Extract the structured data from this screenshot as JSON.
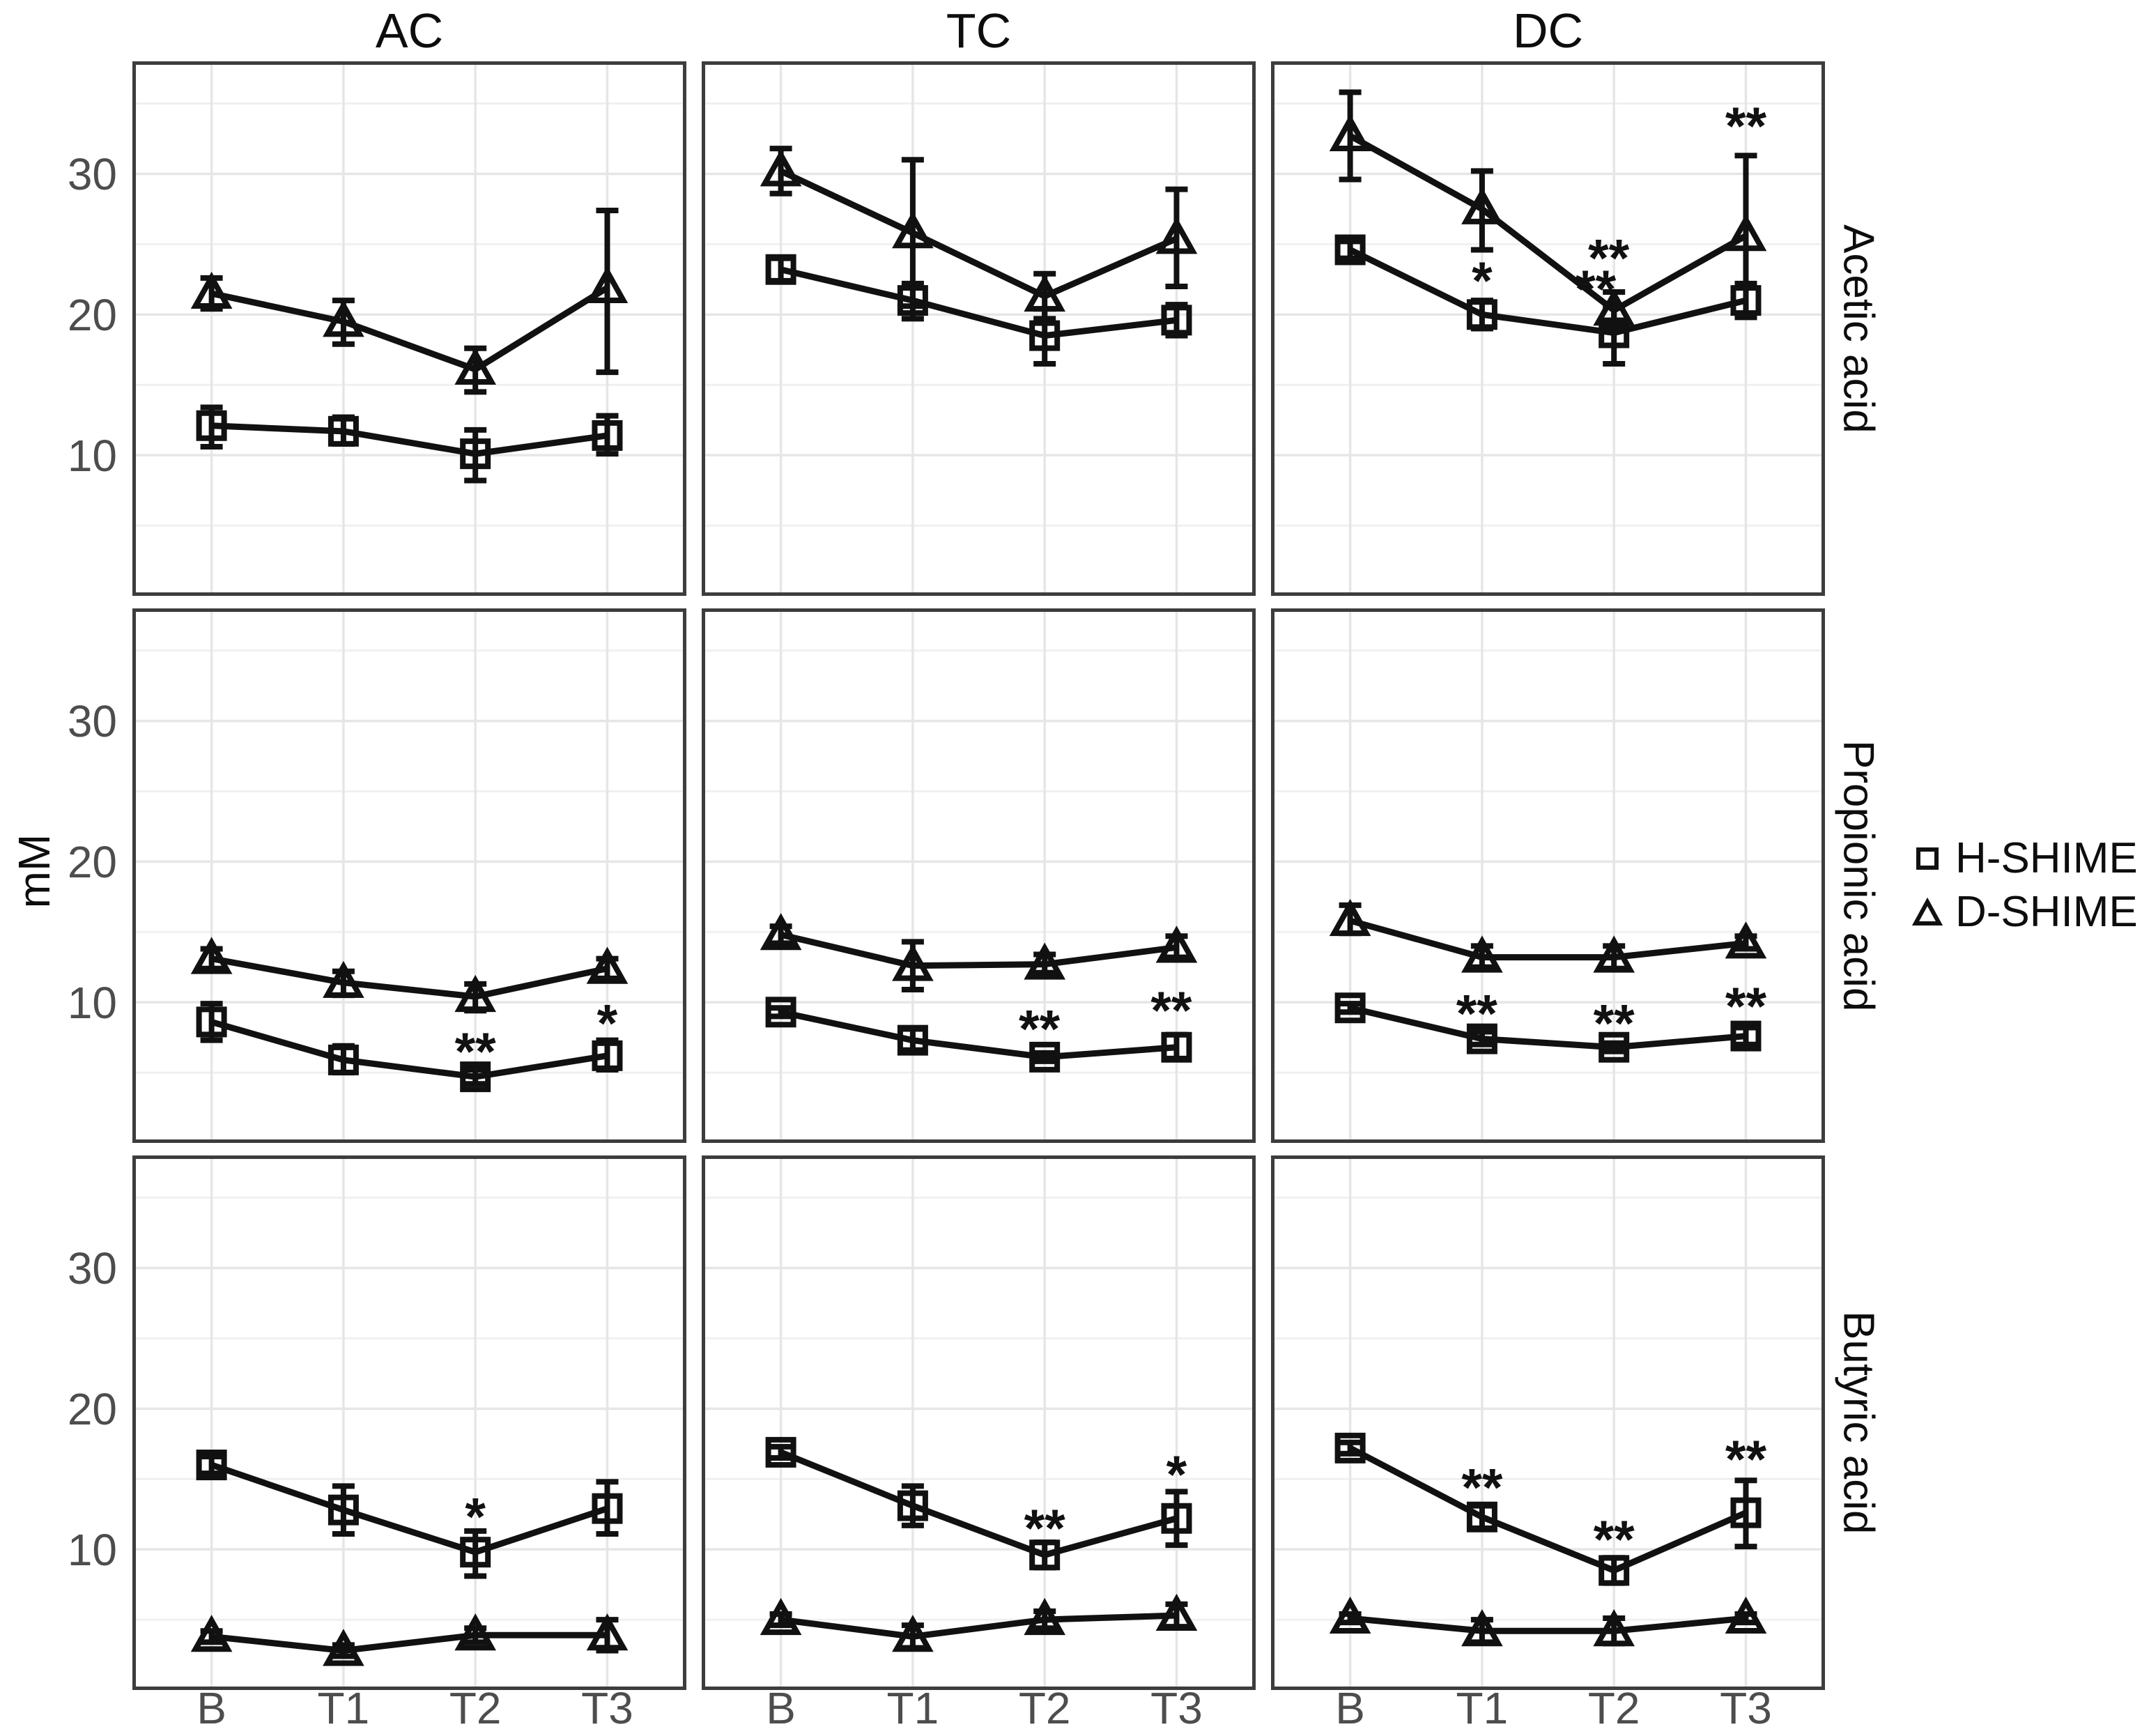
{
  "chart_data": {
    "type": "line",
    "title": "",
    "ylabel": "mM",
    "x_categories": [
      "B",
      "T1",
      "T2",
      "T3"
    ],
    "col_facets": [
      "AC",
      "TC",
      "DC"
    ],
    "row_facets": [
      "Acetic acid",
      "Propionic acid",
      "Butyric acid"
    ],
    "y_ticks": [
      10,
      20,
      30
    ],
    "y_minor_ticks": [
      5,
      15,
      25,
      35
    ],
    "ylim": [
      0,
      38
    ],
    "grid": true,
    "legend_position": "right",
    "legend": [
      {
        "label": "H-SHIME",
        "marker": "square"
      },
      {
        "label": "D-SHIME",
        "marker": "triangle"
      }
    ],
    "colors": {
      "series": "#111111",
      "axis_text": "#4d4d4d",
      "facet_text": "#0d0d0d",
      "grid_major": "#e6e6e6",
      "grid_minor": "#f0f0f0",
      "panel_border": "#3d3d3d",
      "background": "#ffffff"
    },
    "panels": [
      {
        "row": "Acetic acid",
        "col": "AC",
        "series": [
          {
            "name": "H-SHIME",
            "marker": "square",
            "means": [
              12.1,
              11.7,
              10.1,
              11.4
            ],
            "lo": [
              10.6,
              10.8,
              8.2,
              10.1
            ],
            "hi": [
              13.4,
              12.7,
              11.8,
              12.8
            ]
          },
          {
            "name": "D-SHIME",
            "marker": "triangle",
            "means": [
              21.5,
              19.5,
              16.1,
              21.9
            ],
            "lo": [
              20.4,
              17.9,
              14.5,
              15.9
            ],
            "hi": [
              22.6,
              21.0,
              17.6,
              27.4
            ]
          }
        ],
        "annotations": []
      },
      {
        "row": "Acetic acid",
        "col": "TC",
        "series": [
          {
            "name": "H-SHIME",
            "marker": "square",
            "means": [
              23.2,
              21.0,
              18.5,
              19.6
            ],
            "lo": [
              22.4,
              19.7,
              16.5,
              18.5
            ],
            "hi": [
              24.0,
              22.2,
              20.4,
              20.7
            ]
          },
          {
            "name": "D-SHIME",
            "marker": "triangle",
            "means": [
              30.2,
              25.8,
              21.3,
              25.4
            ],
            "lo": [
              28.6,
              20.6,
              19.7,
              22.0
            ],
            "hi": [
              31.8,
              31.0,
              22.9,
              28.9
            ]
          }
        ],
        "annotations": []
      },
      {
        "row": "Acetic acid",
        "col": "DC",
        "series": [
          {
            "name": "H-SHIME",
            "marker": "square",
            "means": [
              24.6,
              20.0,
              18.7,
              21.0
            ],
            "lo": [
              24.0,
              19.0,
              16.5,
              19.8
            ],
            "hi": [
              25.2,
              21.0,
              20.6,
              22.2
            ]
          },
          {
            "name": "D-SHIME",
            "marker": "triangle",
            "means": [
              32.7,
              27.5,
              20.3,
              25.6
            ],
            "lo": [
              29.6,
              24.6,
              19.1,
              20.0
            ],
            "hi": [
              35.8,
              30.2,
              21.6,
              31.3
            ]
          }
        ],
        "annotations": [
          {
            "x": "T1",
            "y": 22.6,
            "dx": 0,
            "text": "*"
          },
          {
            "x": "T2",
            "y": 24.2,
            "dx": -0.04,
            "text": "**"
          },
          {
            "x": "T2",
            "y": 22.0,
            "dx": -0.14,
            "text": "**"
          },
          {
            "x": "T3",
            "y": 33.6,
            "dx": 0,
            "text": "**"
          }
        ]
      },
      {
        "row": "Propionic acid",
        "col": "AC",
        "series": [
          {
            "name": "H-SHIME",
            "marker": "square",
            "means": [
              8.6,
              5.9,
              4.7,
              6.2
            ],
            "lo": [
              7.3,
              5.0,
              4.2,
              5.2
            ],
            "hi": [
              9.9,
              6.9,
              5.2,
              7.3
            ]
          },
          {
            "name": "D-SHIME",
            "marker": "triangle",
            "means": [
              13.1,
              11.4,
              10.4,
              12.4
            ],
            "lo": [
              12.4,
              10.5,
              9.4,
              11.7
            ],
            "hi": [
              13.8,
              12.2,
              11.3,
              13.1
            ]
          }
        ],
        "annotations": [
          {
            "x": "T2",
            "y": 6.7,
            "dx": 0,
            "text": "**"
          },
          {
            "x": "T3",
            "y": 8.7,
            "dx": 0,
            "text": "*"
          }
        ]
      },
      {
        "row": "Propionic acid",
        "col": "TC",
        "series": [
          {
            "name": "H-SHIME",
            "marker": "square",
            "means": [
              9.3,
              7.3,
              6.1,
              6.8
            ],
            "lo": [
              9.0,
              6.6,
              5.8,
              6.0
            ],
            "hi": [
              9.6,
              8.1,
              6.4,
              7.7
            ]
          },
          {
            "name": "D-SHIME",
            "marker": "triangle",
            "means": [
              14.8,
              12.6,
              12.7,
              13.9
            ],
            "lo": [
              14.2,
              10.9,
              12.1,
              13.2
            ],
            "hi": [
              15.4,
              14.3,
              13.4,
              14.7
            ]
          }
        ],
        "annotations": [
          {
            "x": "T2",
            "y": 8.3,
            "dx": -0.04,
            "text": "**"
          },
          {
            "x": "T3",
            "y": 9.6,
            "dx": -0.04,
            "text": "**"
          }
        ]
      },
      {
        "row": "Propionic acid",
        "col": "DC",
        "series": [
          {
            "name": "H-SHIME",
            "marker": "square",
            "means": [
              9.6,
              7.4,
              6.8,
              7.6
            ],
            "lo": [
              9.3,
              7.0,
              6.5,
              7.0
            ],
            "hi": [
              9.9,
              7.9,
              7.1,
              8.2
            ]
          },
          {
            "name": "D-SHIME",
            "marker": "triangle",
            "means": [
              15.8,
              13.2,
              13.2,
              14.2
            ],
            "lo": [
              14.9,
              12.5,
              12.4,
              13.8
            ],
            "hi": [
              16.9,
              14.0,
              14.0,
              14.7
            ]
          }
        ],
        "annotations": [
          {
            "x": "T1",
            "y": 9.4,
            "dx": -0.04,
            "text": "**"
          },
          {
            "x": "T2",
            "y": 8.7,
            "dx": 0,
            "text": "**"
          },
          {
            "x": "T3",
            "y": 9.9,
            "dx": 0,
            "text": "**"
          }
        ]
      },
      {
        "row": "Butyric acid",
        "col": "AC",
        "series": [
          {
            "name": "H-SHIME",
            "marker": "square",
            "means": [
              16.0,
              12.8,
              9.8,
              12.9
            ],
            "lo": [
              15.4,
              11.1,
              8.1,
              11.1
            ],
            "hi": [
              16.6,
              14.5,
              11.3,
              14.8
            ]
          },
          {
            "name": "D-SHIME",
            "marker": "triangle",
            "means": [
              3.8,
              2.8,
              3.9,
              3.9
            ],
            "lo": [
              3.4,
              2.4,
              3.4,
              2.8
            ],
            "hi": [
              4.2,
              3.2,
              4.4,
              5.0
            ]
          }
        ],
        "annotations": [
          {
            "x": "T2",
            "y": 12.5,
            "dx": 0,
            "text": "*"
          }
        ]
      },
      {
        "row": "Butyric acid",
        "col": "TC",
        "series": [
          {
            "name": "H-SHIME",
            "marker": "square",
            "means": [
              16.9,
              13.1,
              9.6,
              12.2
            ],
            "lo": [
              16.5,
              11.7,
              8.7,
              10.3
            ],
            "hi": [
              17.3,
              14.5,
              10.5,
              14.1
            ]
          },
          {
            "name": "D-SHIME",
            "marker": "triangle",
            "means": [
              5.0,
              3.8,
              5.0,
              5.3
            ],
            "lo": [
              4.6,
              3.0,
              4.4,
              4.5
            ],
            "hi": [
              5.4,
              4.6,
              5.6,
              6.1
            ]
          }
        ],
        "annotations": [
          {
            "x": "T2",
            "y": 11.7,
            "dx": 0,
            "text": "**"
          },
          {
            "x": "T3",
            "y": 15.5,
            "dx": 0,
            "text": "*"
          }
        ]
      },
      {
        "row": "Butyric acid",
        "col": "DC",
        "series": [
          {
            "name": "H-SHIME",
            "marker": "square",
            "means": [
              17.2,
              12.3,
              8.5,
              12.6
            ],
            "lo": [
              16.8,
              11.5,
              7.6,
              10.2
            ],
            "hi": [
              17.6,
              13.1,
              9.4,
              14.9
            ]
          },
          {
            "name": "D-SHIME",
            "marker": "triangle",
            "means": [
              5.1,
              4.2,
              4.2,
              5.1
            ],
            "lo": [
              4.8,
              3.4,
              3.3,
              4.8
            ],
            "hi": [
              5.4,
              5.0,
              5.1,
              5.4
            ]
          }
        ],
        "annotations": [
          {
            "x": "T1",
            "y": 14.6,
            "dx": 0,
            "text": "**"
          },
          {
            "x": "T2",
            "y": 10.9,
            "dx": 0,
            "text": "**"
          },
          {
            "x": "T3",
            "y": 16.6,
            "dx": 0,
            "text": "**"
          }
        ]
      }
    ]
  }
}
